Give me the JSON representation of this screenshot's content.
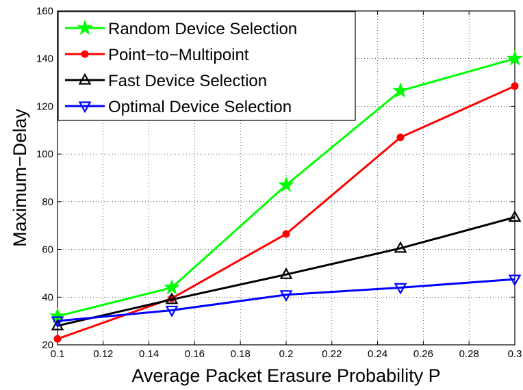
{
  "chart_data": {
    "type": "line",
    "xlabel": "Average Packet Erasure Probability P",
    "ylabel": "Maximum−Delay",
    "xlim": [
      0.1,
      0.3
    ],
    "ylim": [
      20,
      160
    ],
    "xticks": [
      0.1,
      0.12,
      0.14,
      0.16,
      0.18,
      0.2,
      0.22,
      0.24,
      0.26,
      0.28,
      0.3
    ],
    "xtick_labels": [
      "0.1",
      "0.12",
      "0.14",
      "0.16",
      "0.18",
      "0.2",
      "0.22",
      "0.24",
      "0.26",
      "0.28",
      "0.3"
    ],
    "yticks": [
      20,
      40,
      60,
      80,
      100,
      120,
      140,
      160
    ],
    "ytick_labels": [
      "20",
      "40",
      "60",
      "80",
      "100",
      "120",
      "140",
      "160"
    ],
    "grid": true,
    "legend_position": "top-left",
    "x": [
      0.1,
      0.15,
      0.2,
      0.25,
      0.3
    ],
    "series": [
      {
        "name": "Random Device Selection",
        "values": [
          32,
          44,
          87,
          126.5,
          140
        ],
        "color": "#00ff00",
        "marker": "star"
      },
      {
        "name": "Point−to−Multipoint",
        "values": [
          22.5,
          39.5,
          66.5,
          107,
          128.5
        ],
        "color": "#ff0000",
        "marker": "circle"
      },
      {
        "name": "Fast Device Selection",
        "values": [
          28,
          39,
          49.5,
          60.5,
          73.5
        ],
        "color": "#000000",
        "marker": "triangle-up"
      },
      {
        "name": "Optimal Device Selection",
        "values": [
          30,
          34.5,
          41,
          44,
          47.5
        ],
        "color": "#0000ff",
        "marker": "triangle-down"
      }
    ]
  }
}
